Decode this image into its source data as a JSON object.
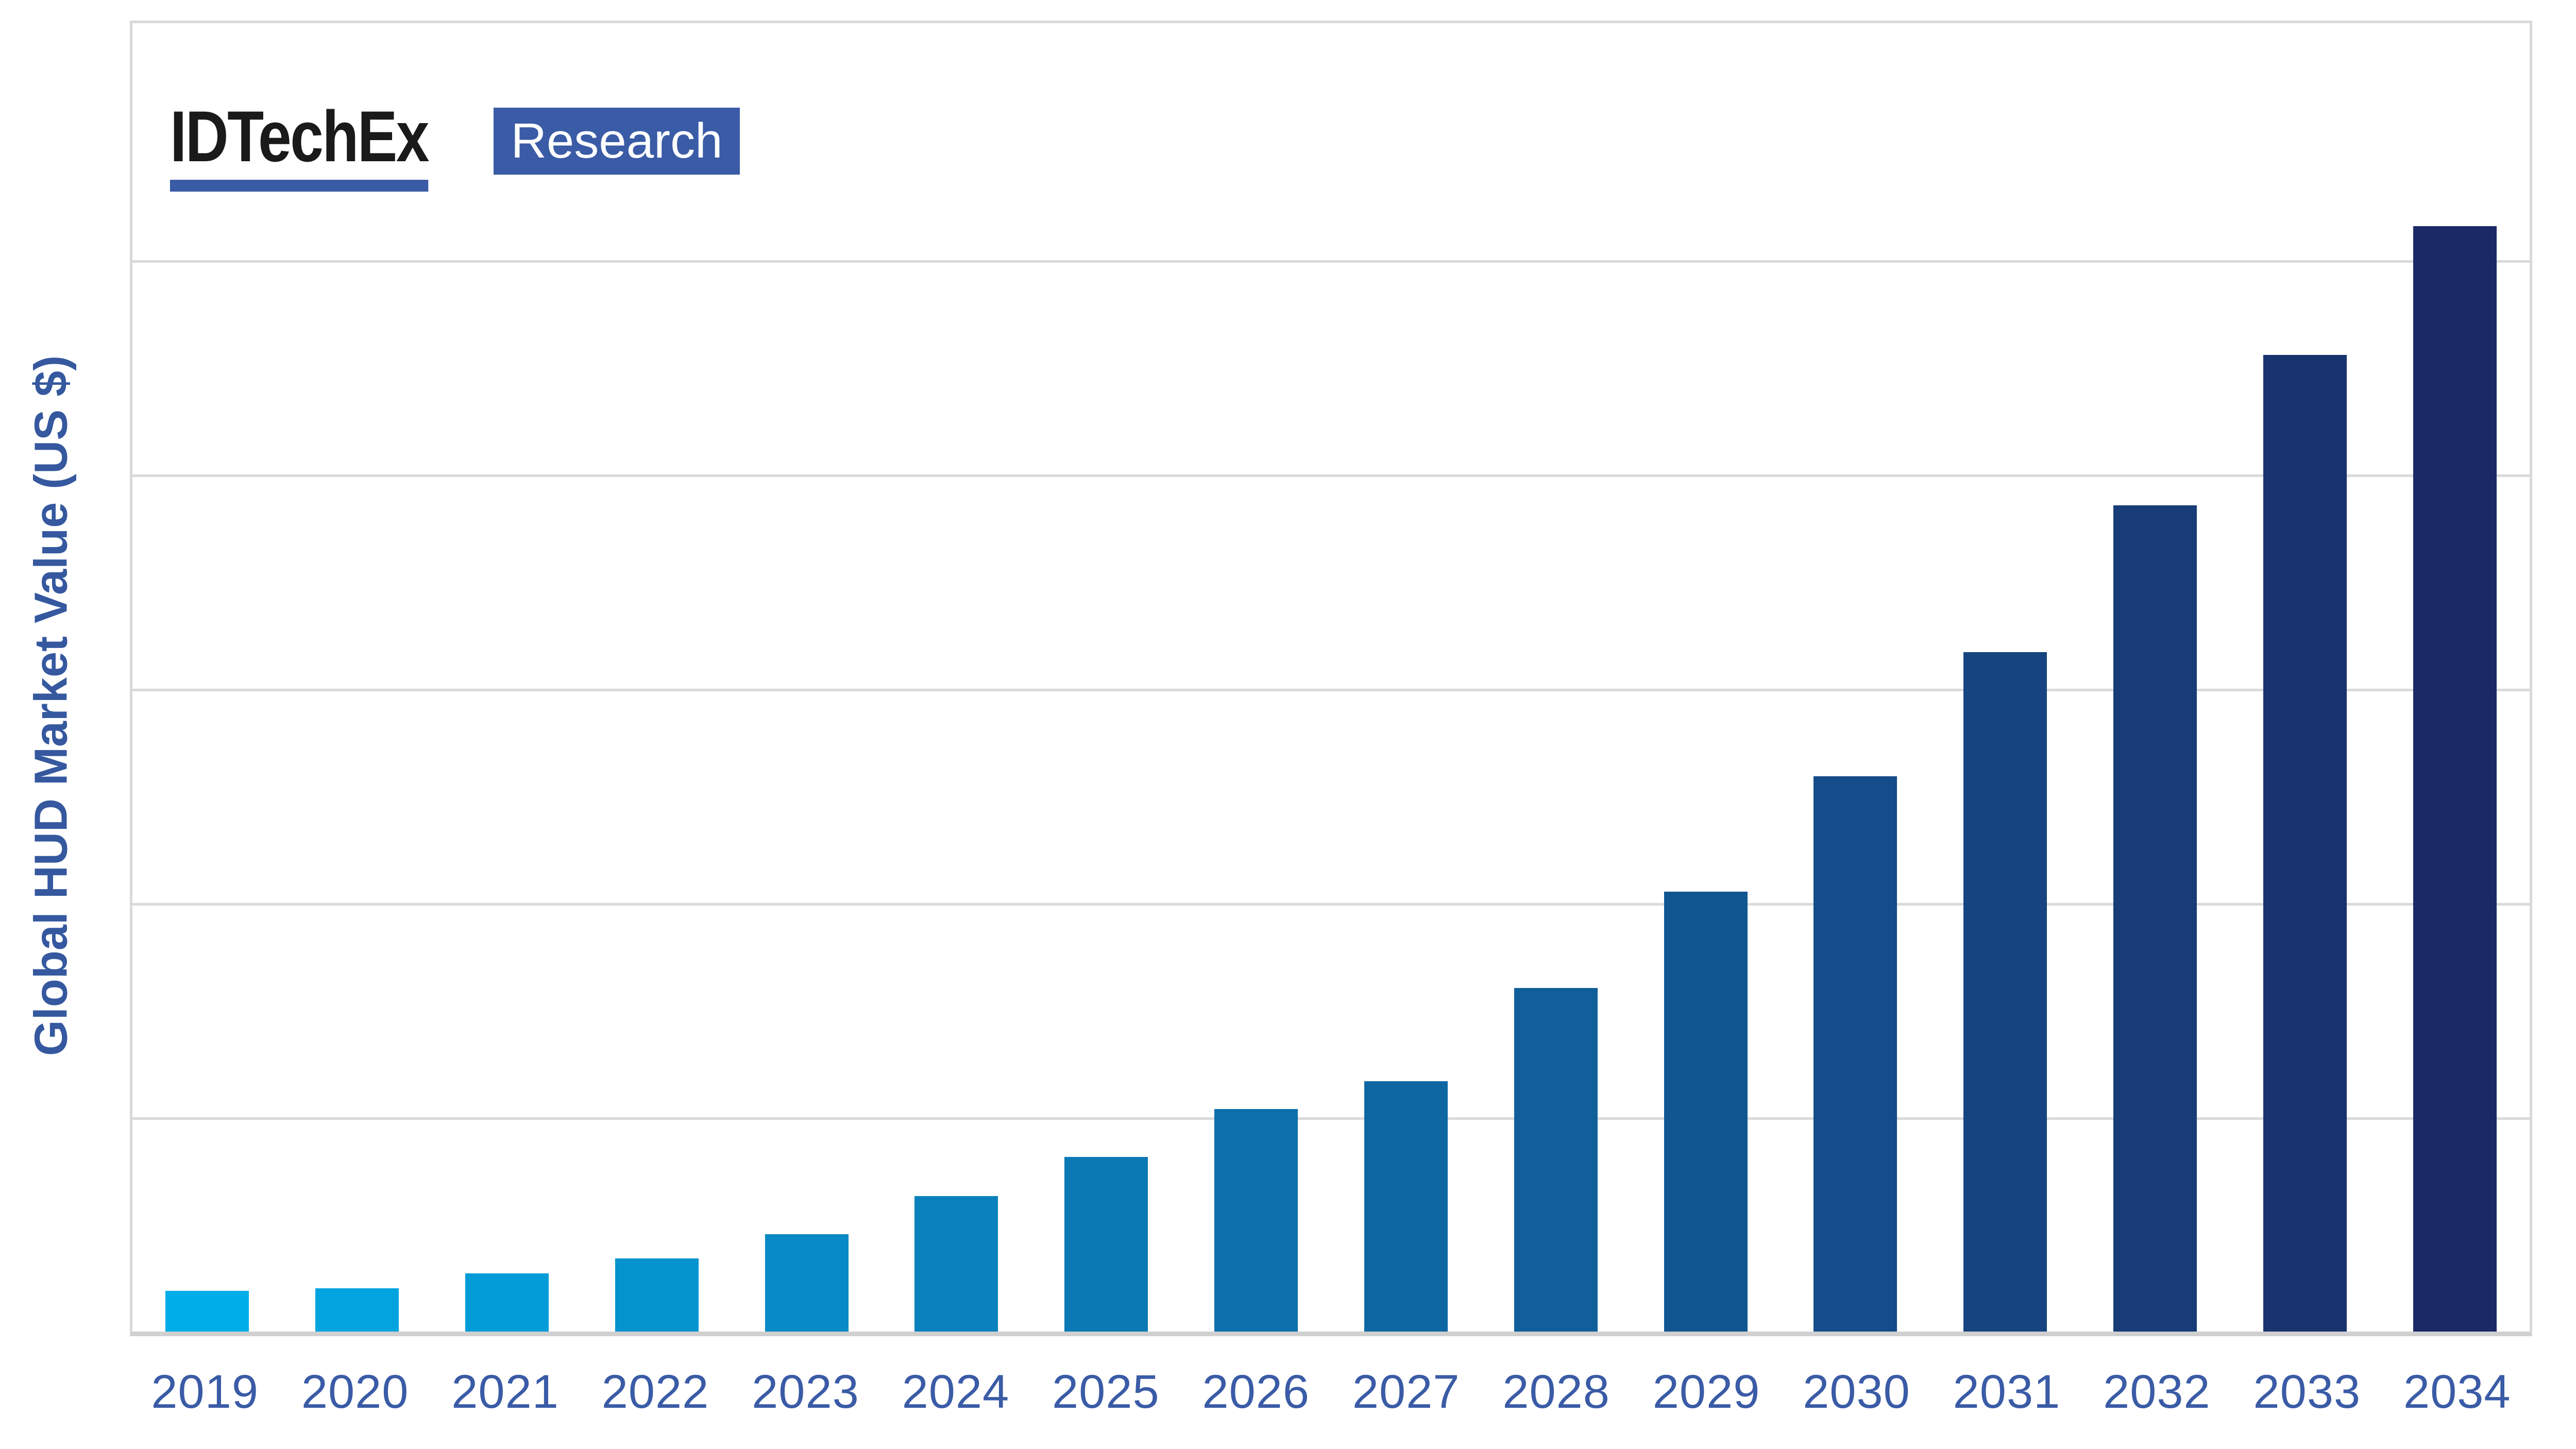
{
  "logo": {
    "brand": "IDTechEx",
    "suffix": "Research"
  },
  "colors": {
    "accent_blue": "#3A5BA6",
    "axis_text_blue": "#3A5BA6",
    "ytitle_blue": "#35589F",
    "plot_border_gray": "#D9D9D9",
    "axis_line_gray": "#D0D0D0",
    "gridline_gray": "#DADADA",
    "logo_text_black": "#1A1A1A",
    "bar_gradient_start": "#00ADE8",
    "bar_gradient_end": "#1B2A66"
  },
  "chart_data": {
    "type": "bar",
    "title": "",
    "xlabel": "",
    "ylabel": "Global HUD Market Value (US $)",
    "categories": [
      "2019",
      "2020",
      "2021",
      "2022",
      "2023",
      "2024",
      "2025",
      "2026",
      "2027",
      "2028",
      "2029",
      "2030",
      "2031",
      "2032",
      "2033",
      "2034"
    ],
    "values_pct_of_2034": [
      3.7,
      3.9,
      5.3,
      6.6,
      8.8,
      12.3,
      15.8,
      20.1,
      22.6,
      31.1,
      39.8,
      50.2,
      61.5,
      74.7,
      88.4,
      100
    ],
    "values_gridline_units": [
      0.19,
      0.2,
      0.27,
      0.34,
      0.45,
      0.64,
      0.82,
      1.04,
      1.17,
      1.6,
      2.05,
      2.59,
      3.17,
      3.86,
      4.56,
      5.16
    ],
    "bar_heights_pct_of_plot": [
      3.11,
      3.31,
      4.45,
      5.59,
      7.44,
      10.35,
      13.35,
      17.01,
      19.13,
      26.26,
      33.62,
      42.44,
      51.93,
      63.15,
      74.65,
      84.49
    ],
    "bar_colors": [
      "#00ADE8",
      "#02A4DF",
      "#049CD7",
      "#0593CE",
      "#078AC5",
      "#0981BD",
      "#0B79B4",
      "#0D70AB",
      "#0E67A3",
      "#105F9A",
      "#125691",
      "#144D89",
      "#164480",
      "#173C77",
      "#19336F",
      "#1B2A66"
    ],
    "gridlines_pct_from_top": [
      18.11,
      34.49,
      50.87,
      67.24,
      83.62
    ],
    "y_axis_tick_labels": "none",
    "legend_position": "none",
    "grid": true,
    "bar_color_note": "bars shade from light cyan-blue (2019) to dark navy (2034)"
  }
}
